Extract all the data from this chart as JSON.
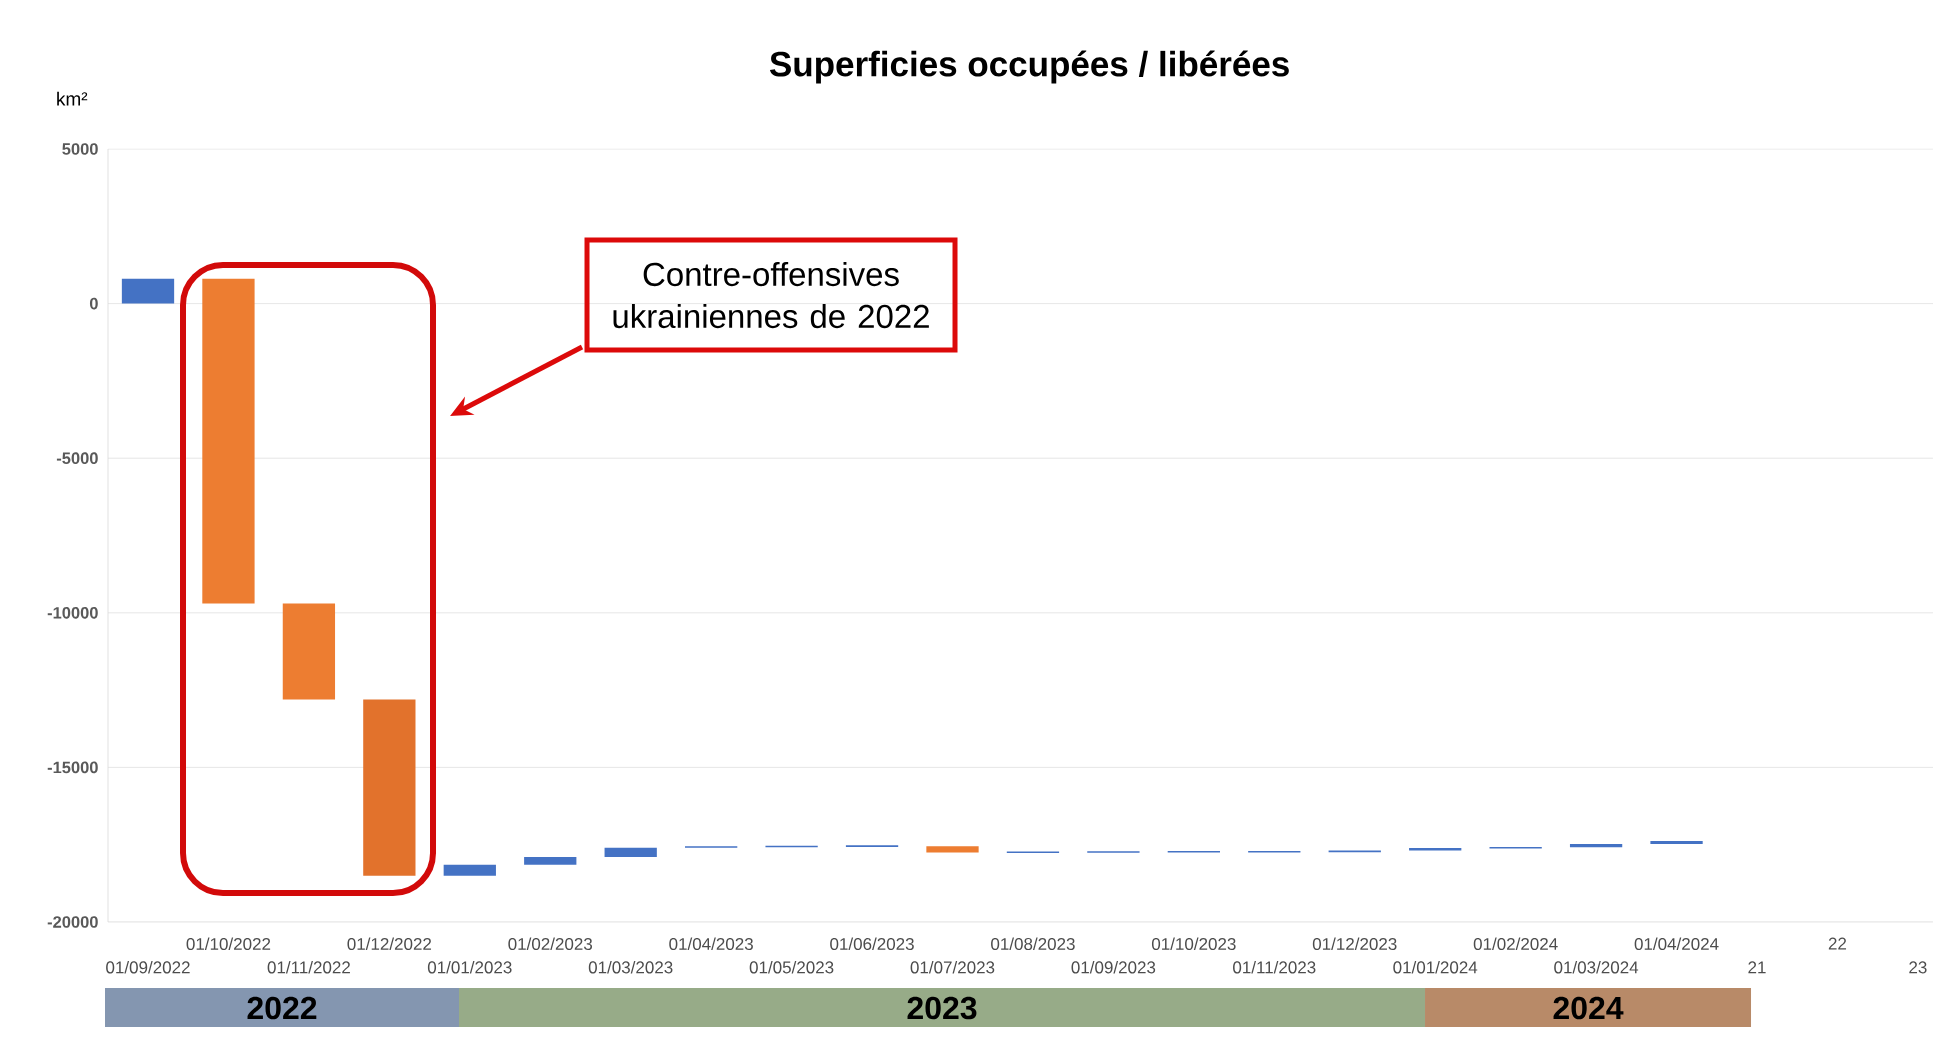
{
  "chart_data": {
    "type": "bar",
    "title": "Superficies occupées / libérées",
    "ylabel": "km²",
    "categories": [
      "01/09/2022",
      "01/10/2022",
      "01/11/2022",
      "01/12/2022",
      "01/01/2023",
      "01/02/2023",
      "01/03/2023",
      "01/04/2023",
      "01/05/2023",
      "01/06/2023",
      "01/07/2023",
      "01/08/2023",
      "01/09/2023",
      "01/10/2023",
      "01/11/2023",
      "01/12/2023",
      "01/01/2024",
      "01/02/2024",
      "01/03/2024",
      "01/04/2024",
      "21",
      "22",
      "23"
    ],
    "values": [
      800,
      -10500,
      -3100,
      -5700,
      350,
      250,
      300,
      50,
      50,
      50,
      -200,
      50,
      50,
      50,
      50,
      50,
      80,
      50,
      100,
      100,
      null,
      null,
      null
    ],
    "base": [
      0,
      800,
      -9700,
      -12800,
      -18500,
      -18150,
      -17900,
      -17600,
      -17580,
      -17570,
      -17550,
      -17770,
      -17760,
      -17750,
      -17750,
      -17740,
      -17690,
      -17620,
      -17580,
      -17480,
      null,
      null,
      null
    ],
    "colors": [
      "#4472c4",
      "#ed7d31",
      "#ed7d31",
      "#e2722c",
      "#4472c4",
      "#4472c4",
      "#4472c4",
      "#4472c4",
      "#4472c4",
      "#4472c4",
      "#ed7d31",
      "#4472c4",
      "#4472c4",
      "#4472c4",
      "#4472c4",
      "#4472c4",
      "#4472c4",
      "#4472c4",
      "#4472c4",
      "#4472c4",
      null,
      null,
      null
    ],
    "ylim": [
      -20000,
      5000
    ],
    "yticks": [
      5000,
      0,
      -5000,
      -10000,
      -15000,
      -20000
    ],
    "grid": "y",
    "annotations": [
      "Contre-offensives ukrainiennes de 2022",
      "2022",
      "2023",
      "2024"
    ]
  }
}
